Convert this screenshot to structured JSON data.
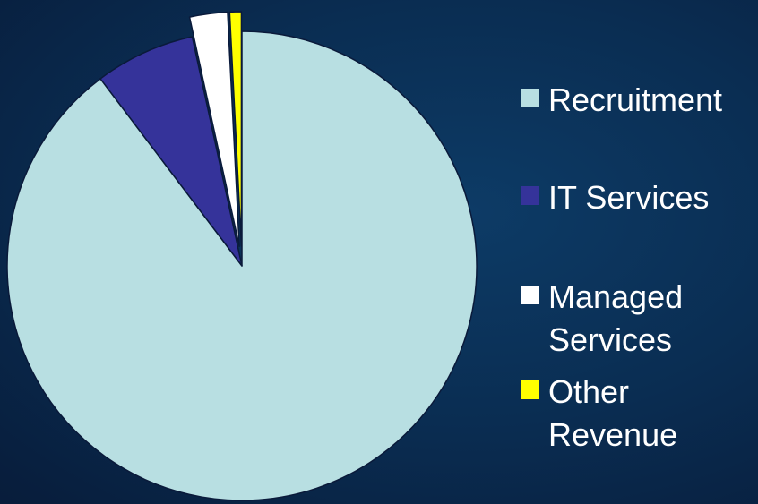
{
  "chart_data": {
    "type": "pie",
    "title": "",
    "slices": [
      {
        "label": "Recruitment",
        "value": 89.7,
        "color": "#b8dfe2"
      },
      {
        "label": "IT Services",
        "value": 6.9,
        "color": "#35339a"
      },
      {
        "label": "Managed Services",
        "value": 2.6,
        "color": "#ffffff",
        "exploded": true
      },
      {
        "label": "Other Revenue",
        "value": 0.8,
        "color": "#ffff00",
        "exploded": true
      }
    ],
    "legend": {
      "position": "right",
      "items": [
        {
          "label": "Recruitment",
          "color": "#b8dfe2"
        },
        {
          "label": "IT Services",
          "color": "#35339a"
        },
        {
          "label": "Managed\nServices",
          "color": "#ffffff"
        },
        {
          "label": "Other\nRevenue",
          "color": "#ffff00"
        }
      ]
    }
  },
  "colors": {
    "background": "#0a2d52",
    "slice_outline": "#0a1a3a",
    "legend_text": "#ffffff"
  }
}
